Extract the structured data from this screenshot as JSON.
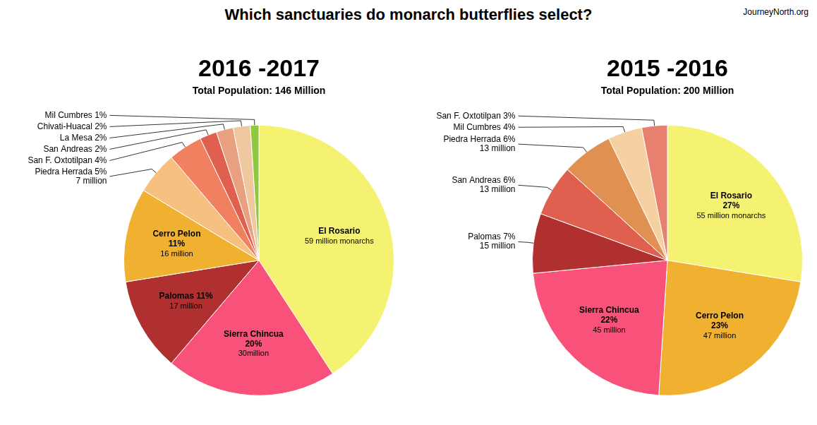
{
  "title": "Which sanctuaries do monarch butterflies select?",
  "annotations": [
    "JourneyNorth.org"
  ],
  "chart_data": [
    {
      "type": "pie",
      "title": "2016 -2017",
      "subtitle": "Total Population: 146 Million",
      "categories": [
        "El Rosario",
        "Sierra Chincua\n20%",
        "Palomas 11%",
        "Cerro Pelon\n11%",
        "Piedra Herrada 5%",
        "San F. Oxtotilpan 4%",
        "San Andreas 2%",
        "La Mesa 2%",
        "Chivati-Huacal 2%",
        "Mil Cumbres 1%"
      ],
      "values": [
        40,
        20,
        11,
        11,
        5,
        4,
        2,
        2,
        2,
        1
      ],
      "colors": [
        "#f5f272",
        "#f8527a",
        "#b03030",
        "#f0b030",
        "#f5c080",
        "#f08060",
        "#e06050",
        "#e8a080",
        "#f0c8a0",
        "#90c840"
      ],
      "annotations": [
        "59 million monarchs",
        "30million",
        "17 million",
        "16 million",
        "7 million",
        null,
        null,
        null,
        null,
        null
      ]
    },
    {
      "type": "pie",
      "title": "2015 -2016",
      "subtitle": "Total Population: 200 Million",
      "categories": [
        "El Rosario\n27%",
        "Cerro Pelon\n23%",
        "Sierra Chincua\n22%",
        "Palomas 7%",
        "San Andreas 6%",
        "Piedra Herrada 6%",
        "Mil Cumbres 4%",
        "San F. Oxtotilpan 3%"
      ],
      "values": [
        27,
        23,
        22,
        7,
        6,
        6,
        4,
        3
      ],
      "colors": [
        "#f5f272",
        "#f0b030",
        "#f8527a",
        "#b03030",
        "#e06050",
        "#e09050",
        "#f5d0a0",
        "#e88070"
      ],
      "annotations": [
        "55 million monarchs",
        "47 million",
        "45 million",
        "15 million",
        "13 million",
        "13 million",
        null,
        null
      ]
    }
  ]
}
